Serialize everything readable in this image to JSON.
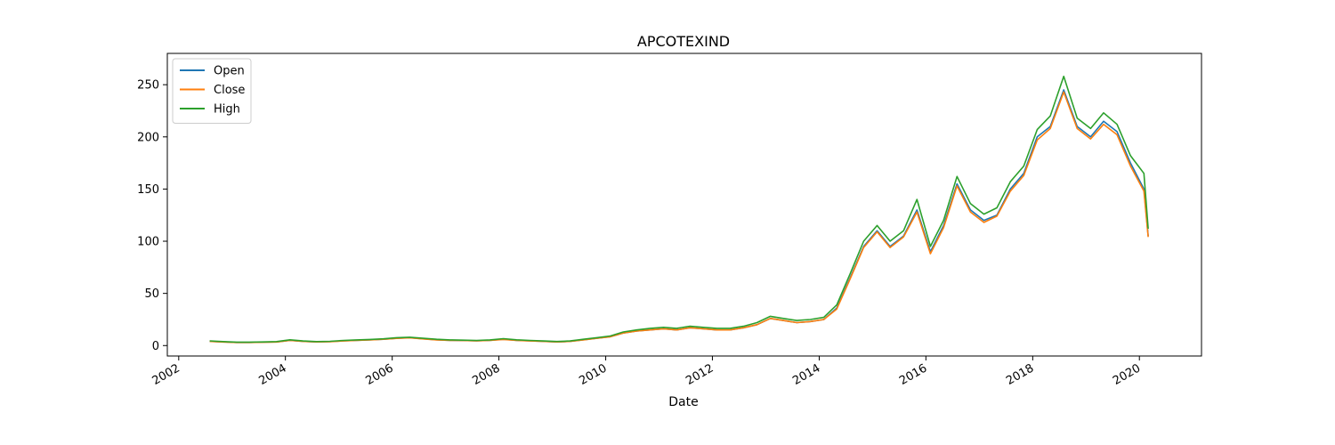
{
  "chart_data": {
    "type": "line",
    "title": "APCOTEXIND",
    "xlabel": "Date",
    "ylabel": "",
    "xlim": [
      "2001-10-15",
      "2021-03-01"
    ],
    "ylim": [
      -10,
      280
    ],
    "x_ticks": [
      "2002",
      "2004",
      "2006",
      "2008",
      "2010",
      "2012",
      "2014",
      "2016",
      "2018",
      "2020"
    ],
    "y_ticks": [
      0,
      50,
      100,
      150,
      200,
      250
    ],
    "grid": false,
    "legend_position": "top-left",
    "colors": {
      "Open": "#1f77b4",
      "Close": "#ff7f0e",
      "High": "#2ca02c"
    },
    "x": [
      "2002-08",
      "2002-11",
      "2003-02",
      "2003-05",
      "2003-08",
      "2003-11",
      "2004-02",
      "2004-05",
      "2004-08",
      "2004-11",
      "2005-02",
      "2005-05",
      "2005-08",
      "2005-11",
      "2006-02",
      "2006-05",
      "2006-08",
      "2006-11",
      "2007-02",
      "2007-05",
      "2007-08",
      "2007-11",
      "2008-02",
      "2008-05",
      "2008-08",
      "2008-11",
      "2009-02",
      "2009-05",
      "2009-08",
      "2009-11",
      "2010-02",
      "2010-05",
      "2010-08",
      "2010-11",
      "2011-02",
      "2011-05",
      "2011-08",
      "2011-11",
      "2012-02",
      "2012-05",
      "2012-08",
      "2012-11",
      "2013-02",
      "2013-05",
      "2013-08",
      "2013-11",
      "2014-02",
      "2014-05",
      "2014-08",
      "2014-11",
      "2015-02",
      "2015-05",
      "2015-08",
      "2015-11",
      "2016-02",
      "2016-05",
      "2016-08",
      "2016-11",
      "2017-02",
      "2017-05",
      "2017-08",
      "2017-11",
      "2018-02",
      "2018-05",
      "2018-08",
      "2018-11",
      "2019-02",
      "2019-05",
      "2019-08",
      "2019-11",
      "2020-02",
      "2020-03"
    ],
    "series": [
      {
        "name": "Open",
        "values": [
          4,
          3.5,
          3,
          3,
          3.2,
          3.5,
          5,
          4,
          3.5,
          3.8,
          4.5,
          5,
          5.5,
          6,
          7,
          7.5,
          6.5,
          5.5,
          5,
          4.8,
          4.5,
          5,
          6,
          5,
          4.5,
          4,
          3.5,
          4,
          5.5,
          7,
          8.5,
          12,
          14,
          15,
          16,
          15,
          17,
          16,
          15,
          15,
          17,
          20,
          26,
          24,
          22,
          23,
          25,
          36,
          65,
          95,
          110,
          95,
          105,
          130,
          90,
          115,
          155,
          130,
          120,
          125,
          150,
          165,
          200,
          210,
          245,
          210,
          200,
          215,
          205,
          175,
          150,
          105
        ]
      },
      {
        "name": "Close",
        "values": [
          4,
          3.4,
          3,
          3,
          3.1,
          3.4,
          4.9,
          4,
          3.5,
          3.7,
          4.4,
          5,
          5.4,
          6,
          6.9,
          7.4,
          6.4,
          5.4,
          5,
          4.8,
          4.5,
          5,
          5.9,
          5,
          4.4,
          4,
          3.5,
          4,
          5.4,
          7,
          8.4,
          12,
          14,
          15,
          16,
          15,
          17,
          16,
          15,
          15,
          17,
          20,
          26,
          24,
          22,
          23,
          25,
          35,
          64,
          94,
          109,
          94,
          104,
          128,
          88,
          113,
          153,
          128,
          118,
          124,
          148,
          163,
          197,
          208,
          243,
          208,
          198,
          212,
          202,
          172,
          148,
          104
        ]
      },
      {
        "name": "High",
        "values": [
          4.5,
          3.8,
          3.3,
          3.3,
          3.5,
          3.8,
          5.5,
          4.4,
          3.8,
          4.1,
          4.9,
          5.4,
          5.9,
          6.5,
          7.6,
          8,
          7,
          6,
          5.4,
          5.2,
          4.9,
          5.4,
          6.6,
          5.5,
          4.9,
          4.4,
          3.9,
          4.4,
          6,
          7.6,
          9.2,
          13,
          15,
          16.5,
          17.5,
          16.5,
          18.5,
          17.5,
          16.5,
          16.5,
          18.5,
          22,
          28,
          26,
          24,
          25,
          27,
          39,
          69,
          100,
          115,
          100,
          110,
          140,
          95,
          120,
          162,
          136,
          126,
          132,
          157,
          172,
          207,
          220,
          258,
          218,
          208,
          223,
          212,
          182,
          165,
          112
        ]
      }
    ]
  }
}
